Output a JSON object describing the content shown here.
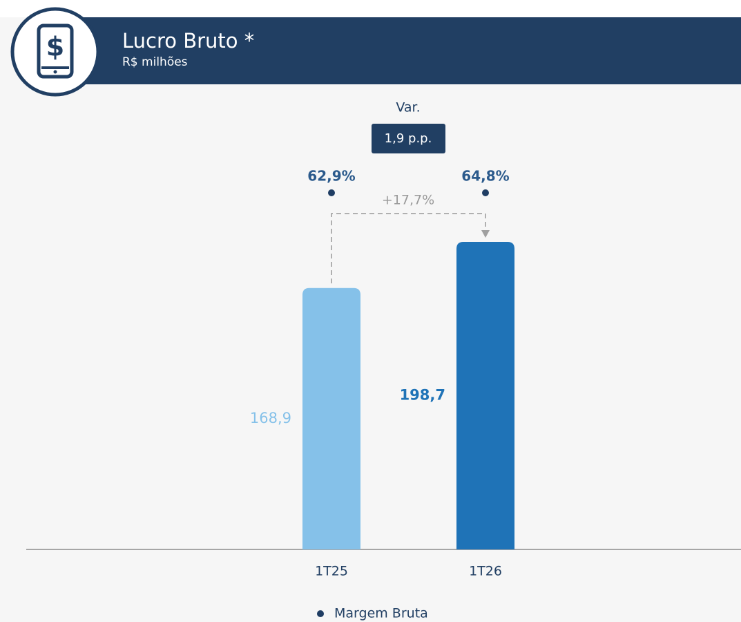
{
  "chart_data": {
    "type": "bar",
    "title": "Lucro Bruto *",
    "subtitle": "R$ milhões",
    "categories": [
      "1T25",
      "1T26"
    ],
    "values": [
      168.9,
      198.7
    ],
    "value_labels": [
      "168,9",
      "198,7"
    ],
    "colors": [
      "#85c1e9",
      "#1f73b7"
    ],
    "margin": {
      "name": "Margem Bruta",
      "values": [
        62.9,
        64.8
      ],
      "value_labels": [
        "62,9%",
        "64,8%"
      ],
      "color": "#1f3d63"
    },
    "variation_label": "Var.",
    "variation": "1,9 p.p.",
    "growth": "+17,7%"
  }
}
